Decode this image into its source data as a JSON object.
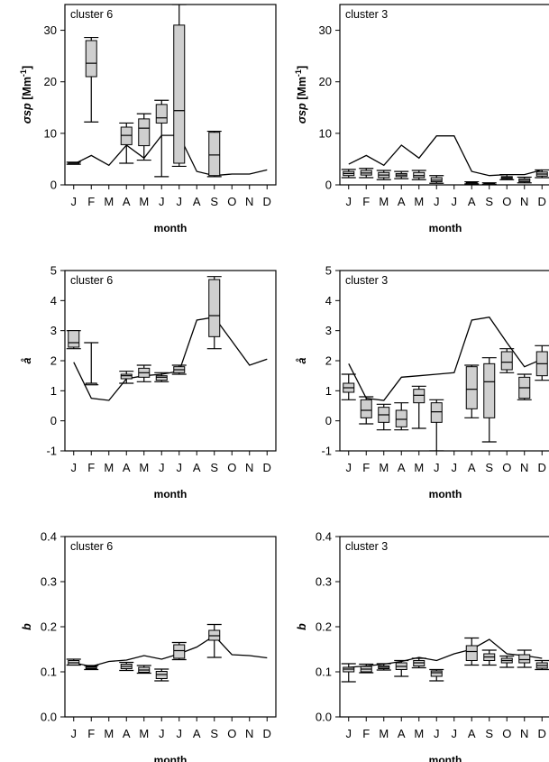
{
  "months": [
    "J",
    "F",
    "M",
    "A",
    "M",
    "J",
    "J",
    "A",
    "S",
    "O",
    "N",
    "D"
  ],
  "chart_data": [
    {
      "type": "boxplot",
      "label": "cluster 6",
      "xlabel": "month",
      "ylabel_main": "σsp",
      "ylabel_unit": "[Mm",
      "ylabel_sup": "-1",
      "ylabel_close": "]",
      "ylim": [
        0,
        35
      ],
      "yticks": [
        0,
        10,
        20,
        30
      ],
      "boxes": [
        {
          "x": 1,
          "whislo": 4.0,
          "q1": 4.0,
          "med": 4.2,
          "q3": 4.3,
          "whishi": 4.4
        },
        {
          "x": 2,
          "whislo": 12.2,
          "q1": 21.0,
          "med": 23.6,
          "q3": 28.0,
          "whishi": 28.6
        },
        {
          "x": 4,
          "whislo": 4.2,
          "q1": 7.8,
          "med": 9.6,
          "q3": 11.2,
          "whishi": 12.0
        },
        {
          "x": 5,
          "whislo": 4.8,
          "q1": 7.6,
          "med": 11.0,
          "q3": 12.8,
          "whishi": 13.8
        },
        {
          "x": 6,
          "whislo": 1.6,
          "q1": 12.0,
          "med": 13.0,
          "q3": 15.6,
          "whishi": 16.4
        },
        {
          "x": 7,
          "whislo": 3.6,
          "q1": 4.2,
          "med": 14.4,
          "q3": 31.0,
          "whishi": 35.0
        },
        {
          "x": 9,
          "whislo": 1.6,
          "q1": 1.8,
          "med": 5.8,
          "q3": 10.2,
          "whishi": 10.4
        }
      ],
      "line": [
        4.0,
        5.7,
        3.8,
        7.7,
        5.2,
        9.6,
        9.6,
        2.6,
        1.8,
        2.1,
        2.1,
        2.9
      ]
    },
    {
      "type": "boxplot",
      "label": "cluster 3",
      "xlabel": "month",
      "ylabel_main": "σsp",
      "ylabel_unit": "[Mm",
      "ylabel_sup": "-1",
      "ylabel_close": "]",
      "ylim": [
        0,
        35
      ],
      "yticks": [
        0,
        10,
        20,
        30
      ],
      "boxes": [
        {
          "x": 1,
          "whislo": 1.4,
          "q1": 1.8,
          "med": 2.2,
          "q3": 2.6,
          "whishi": 3.0
        },
        {
          "x": 2,
          "whislo": 1.4,
          "q1": 1.9,
          "med": 2.3,
          "q3": 2.8,
          "whishi": 3.2
        },
        {
          "x": 3,
          "whislo": 1.0,
          "q1": 1.4,
          "med": 1.9,
          "q3": 2.4,
          "whishi": 2.8
        },
        {
          "x": 4,
          "whislo": 1.2,
          "q1": 1.6,
          "med": 1.9,
          "q3": 2.2,
          "whishi": 2.6
        },
        {
          "x": 5,
          "whislo": 1.0,
          "q1": 1.4,
          "med": 1.8,
          "q3": 2.4,
          "whishi": 2.8
        },
        {
          "x": 6,
          "whislo": 0.3,
          "q1": 0.6,
          "med": 0.9,
          "q3": 1.4,
          "whishi": 1.8
        },
        {
          "x": 8,
          "whislo": 0.2,
          "q1": 0.3,
          "med": 0.4,
          "q3": 0.5,
          "whishi": 0.6
        },
        {
          "x": 9,
          "whislo": 0.1,
          "q1": 0.15,
          "med": 0.2,
          "q3": 0.3,
          "whishi": 0.4
        },
        {
          "x": 10,
          "whislo": 1.0,
          "q1": 1.2,
          "med": 1.4,
          "q3": 1.6,
          "whishi": 2.0
        },
        {
          "x": 11,
          "whislo": 0.4,
          "q1": 0.6,
          "med": 0.9,
          "q3": 1.2,
          "whishi": 1.5
        },
        {
          "x": 12,
          "whislo": 1.4,
          "q1": 1.7,
          "med": 2.1,
          "q3": 2.5,
          "whishi": 2.9
        }
      ],
      "line": [
        4.0,
        5.7,
        3.8,
        7.7,
        5.2,
        9.5,
        9.5,
        2.6,
        1.8,
        2.0,
        2.0,
        2.9
      ]
    },
    {
      "type": "boxplot",
      "label": "cluster 6",
      "xlabel": "month",
      "ylabel_main": "å",
      "ylim": [
        -1,
        5
      ],
      "yticks": [
        -1,
        0,
        1,
        2,
        3,
        4,
        5
      ],
      "boxes": [
        {
          "x": 1,
          "whislo": 2.4,
          "q1": 2.45,
          "med": 2.6,
          "q3": 3.0,
          "whishi": 3.0
        },
        {
          "x": 2,
          "whislo": 1.2,
          "q1": 1.2,
          "med": 1.25,
          "q3": 1.25,
          "whishi": 2.6
        },
        {
          "x": 4,
          "whislo": 1.25,
          "q1": 1.4,
          "med": 1.5,
          "q3": 1.55,
          "whishi": 1.65
        },
        {
          "x": 5,
          "whislo": 1.3,
          "q1": 1.45,
          "med": 1.6,
          "q3": 1.75,
          "whishi": 1.85
        },
        {
          "x": 6,
          "whislo": 1.3,
          "q1": 1.35,
          "med": 1.45,
          "q3": 1.5,
          "whishi": 1.6
        },
        {
          "x": 7,
          "whislo": 1.55,
          "q1": 1.6,
          "med": 1.7,
          "q3": 1.8,
          "whishi": 1.85
        },
        {
          "x": 9,
          "whislo": 2.4,
          "q1": 2.8,
          "med": 3.5,
          "q3": 4.7,
          "whishi": 4.8
        }
      ],
      "line": [
        1.95,
        0.75,
        0.68,
        1.4,
        1.5,
        1.55,
        1.65,
        3.35,
        3.45,
        2.65,
        1.85,
        2.05
      ]
    },
    {
      "type": "boxplot",
      "label": "cluster 3",
      "xlabel": "month",
      "ylabel_main": "å",
      "ylim": [
        -1,
        5
      ],
      "yticks": [
        -1,
        0,
        1,
        2,
        3,
        4,
        5
      ],
      "boxes": [
        {
          "x": 1,
          "whislo": 0.7,
          "q1": 0.95,
          "med": 1.1,
          "q3": 1.25,
          "whishi": 1.55
        },
        {
          "x": 2,
          "whislo": -0.1,
          "q1": 0.1,
          "med": 0.35,
          "q3": 0.7,
          "whishi": 0.8
        },
        {
          "x": 3,
          "whislo": -0.3,
          "q1": -0.05,
          "med": 0.2,
          "q3": 0.45,
          "whishi": 0.55
        },
        {
          "x": 4,
          "whislo": -0.3,
          "q1": -0.2,
          "med": 0.05,
          "q3": 0.35,
          "whishi": 0.6
        },
        {
          "x": 5,
          "whislo": -0.25,
          "q1": 0.6,
          "med": 0.85,
          "q3": 1.05,
          "whishi": 1.15
        },
        {
          "x": 6,
          "whislo": -1.0,
          "q1": -0.05,
          "med": 0.3,
          "q3": 0.6,
          "whishi": 0.7
        },
        {
          "x": 8,
          "whislo": 0.1,
          "q1": 0.4,
          "med": 1.05,
          "q3": 1.8,
          "whishi": 1.85
        },
        {
          "x": 9,
          "whislo": -0.7,
          "q1": 0.1,
          "med": 1.3,
          "q3": 1.9,
          "whishi": 2.1
        },
        {
          "x": 10,
          "whislo": 1.6,
          "q1": 1.7,
          "med": 1.95,
          "q3": 2.3,
          "whishi": 2.4
        },
        {
          "x": 11,
          "whislo": 0.7,
          "q1": 0.75,
          "med": 1.1,
          "q3": 1.45,
          "whishi": 1.55
        },
        {
          "x": 12,
          "whislo": 1.35,
          "q1": 1.5,
          "med": 1.9,
          "q3": 2.3,
          "whishi": 2.5
        }
      ],
      "line": [
        1.9,
        0.75,
        0.68,
        1.45,
        1.5,
        1.55,
        1.6,
        3.35,
        3.45,
        2.6,
        1.8,
        2.05
      ]
    },
    {
      "type": "boxplot",
      "label": "cluster 6",
      "xlabel": "month",
      "ylabel_main": "b",
      "ylim": [
        0.0,
        0.4
      ],
      "yticks": [
        0.0,
        0.1,
        0.2,
        0.3,
        0.4
      ],
      "yfmt": 1,
      "boxes": [
        {
          "x": 1,
          "whislo": 0.115,
          "q1": 0.115,
          "med": 0.12,
          "q3": 0.125,
          "whishi": 0.128
        },
        {
          "x": 2,
          "whislo": 0.105,
          "q1": 0.107,
          "med": 0.11,
          "q3": 0.112,
          "whishi": 0.114
        },
        {
          "x": 4,
          "whislo": 0.103,
          "q1": 0.107,
          "med": 0.112,
          "q3": 0.117,
          "whishi": 0.121
        },
        {
          "x": 5,
          "whislo": 0.097,
          "q1": 0.099,
          "med": 0.104,
          "q3": 0.11,
          "whishi": 0.114
        },
        {
          "x": 6,
          "whislo": 0.08,
          "q1": 0.085,
          "med": 0.094,
          "q3": 0.101,
          "whishi": 0.106
        },
        {
          "x": 7,
          "whislo": 0.127,
          "q1": 0.13,
          "med": 0.147,
          "q3": 0.16,
          "whishi": 0.165
        },
        {
          "x": 9,
          "whislo": 0.132,
          "q1": 0.17,
          "med": 0.18,
          "q3": 0.192,
          "whishi": 0.205
        }
      ],
      "line": [
        0.12,
        0.112,
        0.123,
        0.126,
        0.136,
        0.128,
        0.14,
        0.155,
        0.18,
        0.138,
        0.136,
        0.131
      ]
    },
    {
      "type": "boxplot",
      "label": "cluster 3",
      "xlabel": "month",
      "ylabel_main": "b",
      "ylim": [
        0.0,
        0.4
      ],
      "yticks": [
        0.0,
        0.1,
        0.2,
        0.3,
        0.4
      ],
      "yfmt": 1,
      "boxes": [
        {
          "x": 1,
          "whislo": 0.078,
          "q1": 0.1,
          "med": 0.106,
          "q3": 0.11,
          "whishi": 0.118
        },
        {
          "x": 2,
          "whislo": 0.098,
          "q1": 0.1,
          "med": 0.106,
          "q3": 0.112,
          "whishi": 0.117
        },
        {
          "x": 3,
          "whislo": 0.104,
          "q1": 0.107,
          "med": 0.11,
          "q3": 0.113,
          "whishi": 0.118
        },
        {
          "x": 4,
          "whislo": 0.09,
          "q1": 0.105,
          "med": 0.112,
          "q3": 0.12,
          "whishi": 0.125
        },
        {
          "x": 5,
          "whislo": 0.109,
          "q1": 0.113,
          "med": 0.12,
          "q3": 0.125,
          "whishi": 0.13
        },
        {
          "x": 6,
          "whislo": 0.08,
          "q1": 0.09,
          "med": 0.098,
          "q3": 0.102,
          "whishi": 0.105
        },
        {
          "x": 8,
          "whislo": 0.115,
          "q1": 0.125,
          "med": 0.145,
          "q3": 0.158,
          "whishi": 0.175
        },
        {
          "x": 9,
          "whislo": 0.115,
          "q1": 0.125,
          "med": 0.133,
          "q3": 0.14,
          "whishi": 0.148
        },
        {
          "x": 10,
          "whislo": 0.11,
          "q1": 0.12,
          "med": 0.125,
          "q3": 0.13,
          "whishi": 0.135
        },
        {
          "x": 11,
          "whislo": 0.11,
          "q1": 0.12,
          "med": 0.127,
          "q3": 0.138,
          "whishi": 0.148
        },
        {
          "x": 12,
          "whislo": 0.105,
          "q1": 0.108,
          "med": 0.114,
          "q3": 0.12,
          "whishi": 0.125
        }
      ],
      "line": [
        0.11,
        0.113,
        0.117,
        0.123,
        0.132,
        0.125,
        0.14,
        0.15,
        0.172,
        0.14,
        0.136,
        0.13
      ]
    }
  ]
}
